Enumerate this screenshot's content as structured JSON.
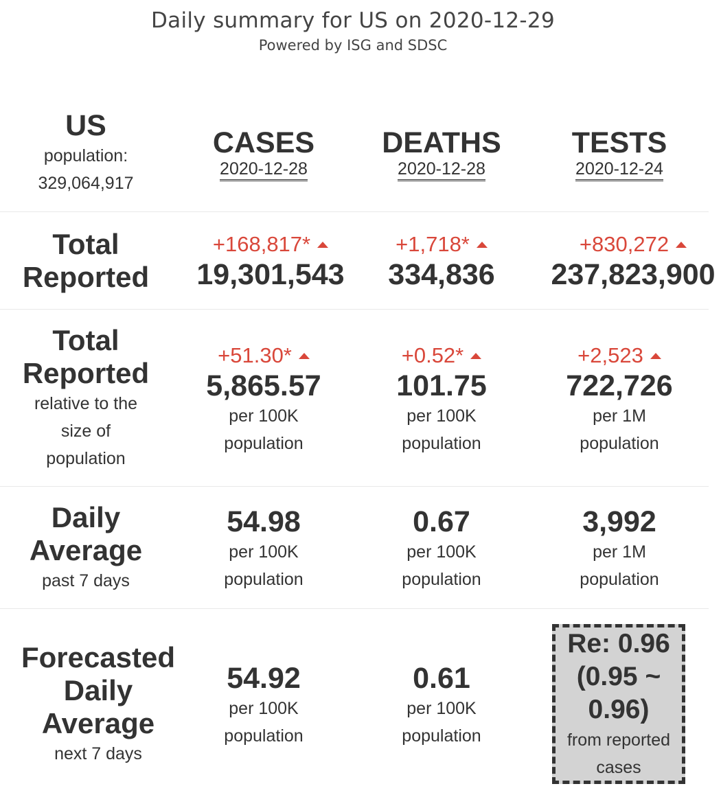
{
  "header": {
    "title": "Daily summary for US on 2020-12-29",
    "subtitle": "Powered by ISG and SDSC"
  },
  "region": {
    "name": "US",
    "population_label": "population:",
    "population": "329,064,917"
  },
  "columns": [
    {
      "name": "CASES",
      "date": "2020-12-28"
    },
    {
      "name": "DEATHS",
      "date": "2020-12-28"
    },
    {
      "name": "TESTS",
      "date": "2020-12-24"
    }
  ],
  "total_reported": {
    "label_line1": "Total",
    "label_line2": "Reported",
    "cells": [
      {
        "delta": "+168,817*",
        "value": "19,301,543"
      },
      {
        "delta": "+1,718*",
        "value": "334,836"
      },
      {
        "delta": "+830,272",
        "value": "237,823,900"
      }
    ]
  },
  "relative": {
    "label_line1": "Total",
    "label_line2": "Reported",
    "label_sub1": "relative to the",
    "label_sub2": "size of",
    "label_sub3": "population",
    "cells": [
      {
        "delta": "+51.30*",
        "value": "5,865.57",
        "unit1": "per 100K",
        "unit2": "population"
      },
      {
        "delta": "+0.52*",
        "value": "101.75",
        "unit1": "per 100K",
        "unit2": "population"
      },
      {
        "delta": "+2,523",
        "value": "722,726",
        "unit1": "per 1M",
        "unit2": "population"
      }
    ]
  },
  "daily_average": {
    "label_line1": "Daily",
    "label_line2": "Average",
    "label_sub": "past 7 days",
    "cells": [
      {
        "value": "54.98",
        "unit1": "per 100K",
        "unit2": "population"
      },
      {
        "value": "0.67",
        "unit1": "per 100K",
        "unit2": "population"
      },
      {
        "value": "3,992",
        "unit1": "per 1M",
        "unit2": "population"
      }
    ]
  },
  "forecast": {
    "label_line1": "Forecasted",
    "label_line2": "Daily",
    "label_line3": "Average",
    "label_sub": "next 7 days",
    "cells": [
      {
        "value": "54.92",
        "unit1": "per 100K",
        "unit2": "population"
      },
      {
        "value": "0.61",
        "unit1": "per 100K",
        "unit2": "population"
      }
    ],
    "re": {
      "line1": "Re: 0.96",
      "line2": "(0.95 ~",
      "line3": "0.96)",
      "sub1": "from reported",
      "sub2": "cases"
    }
  },
  "colors": {
    "delta": "#d9473a",
    "text": "#333333",
    "re_box_bg": "#d3d3d3"
  }
}
